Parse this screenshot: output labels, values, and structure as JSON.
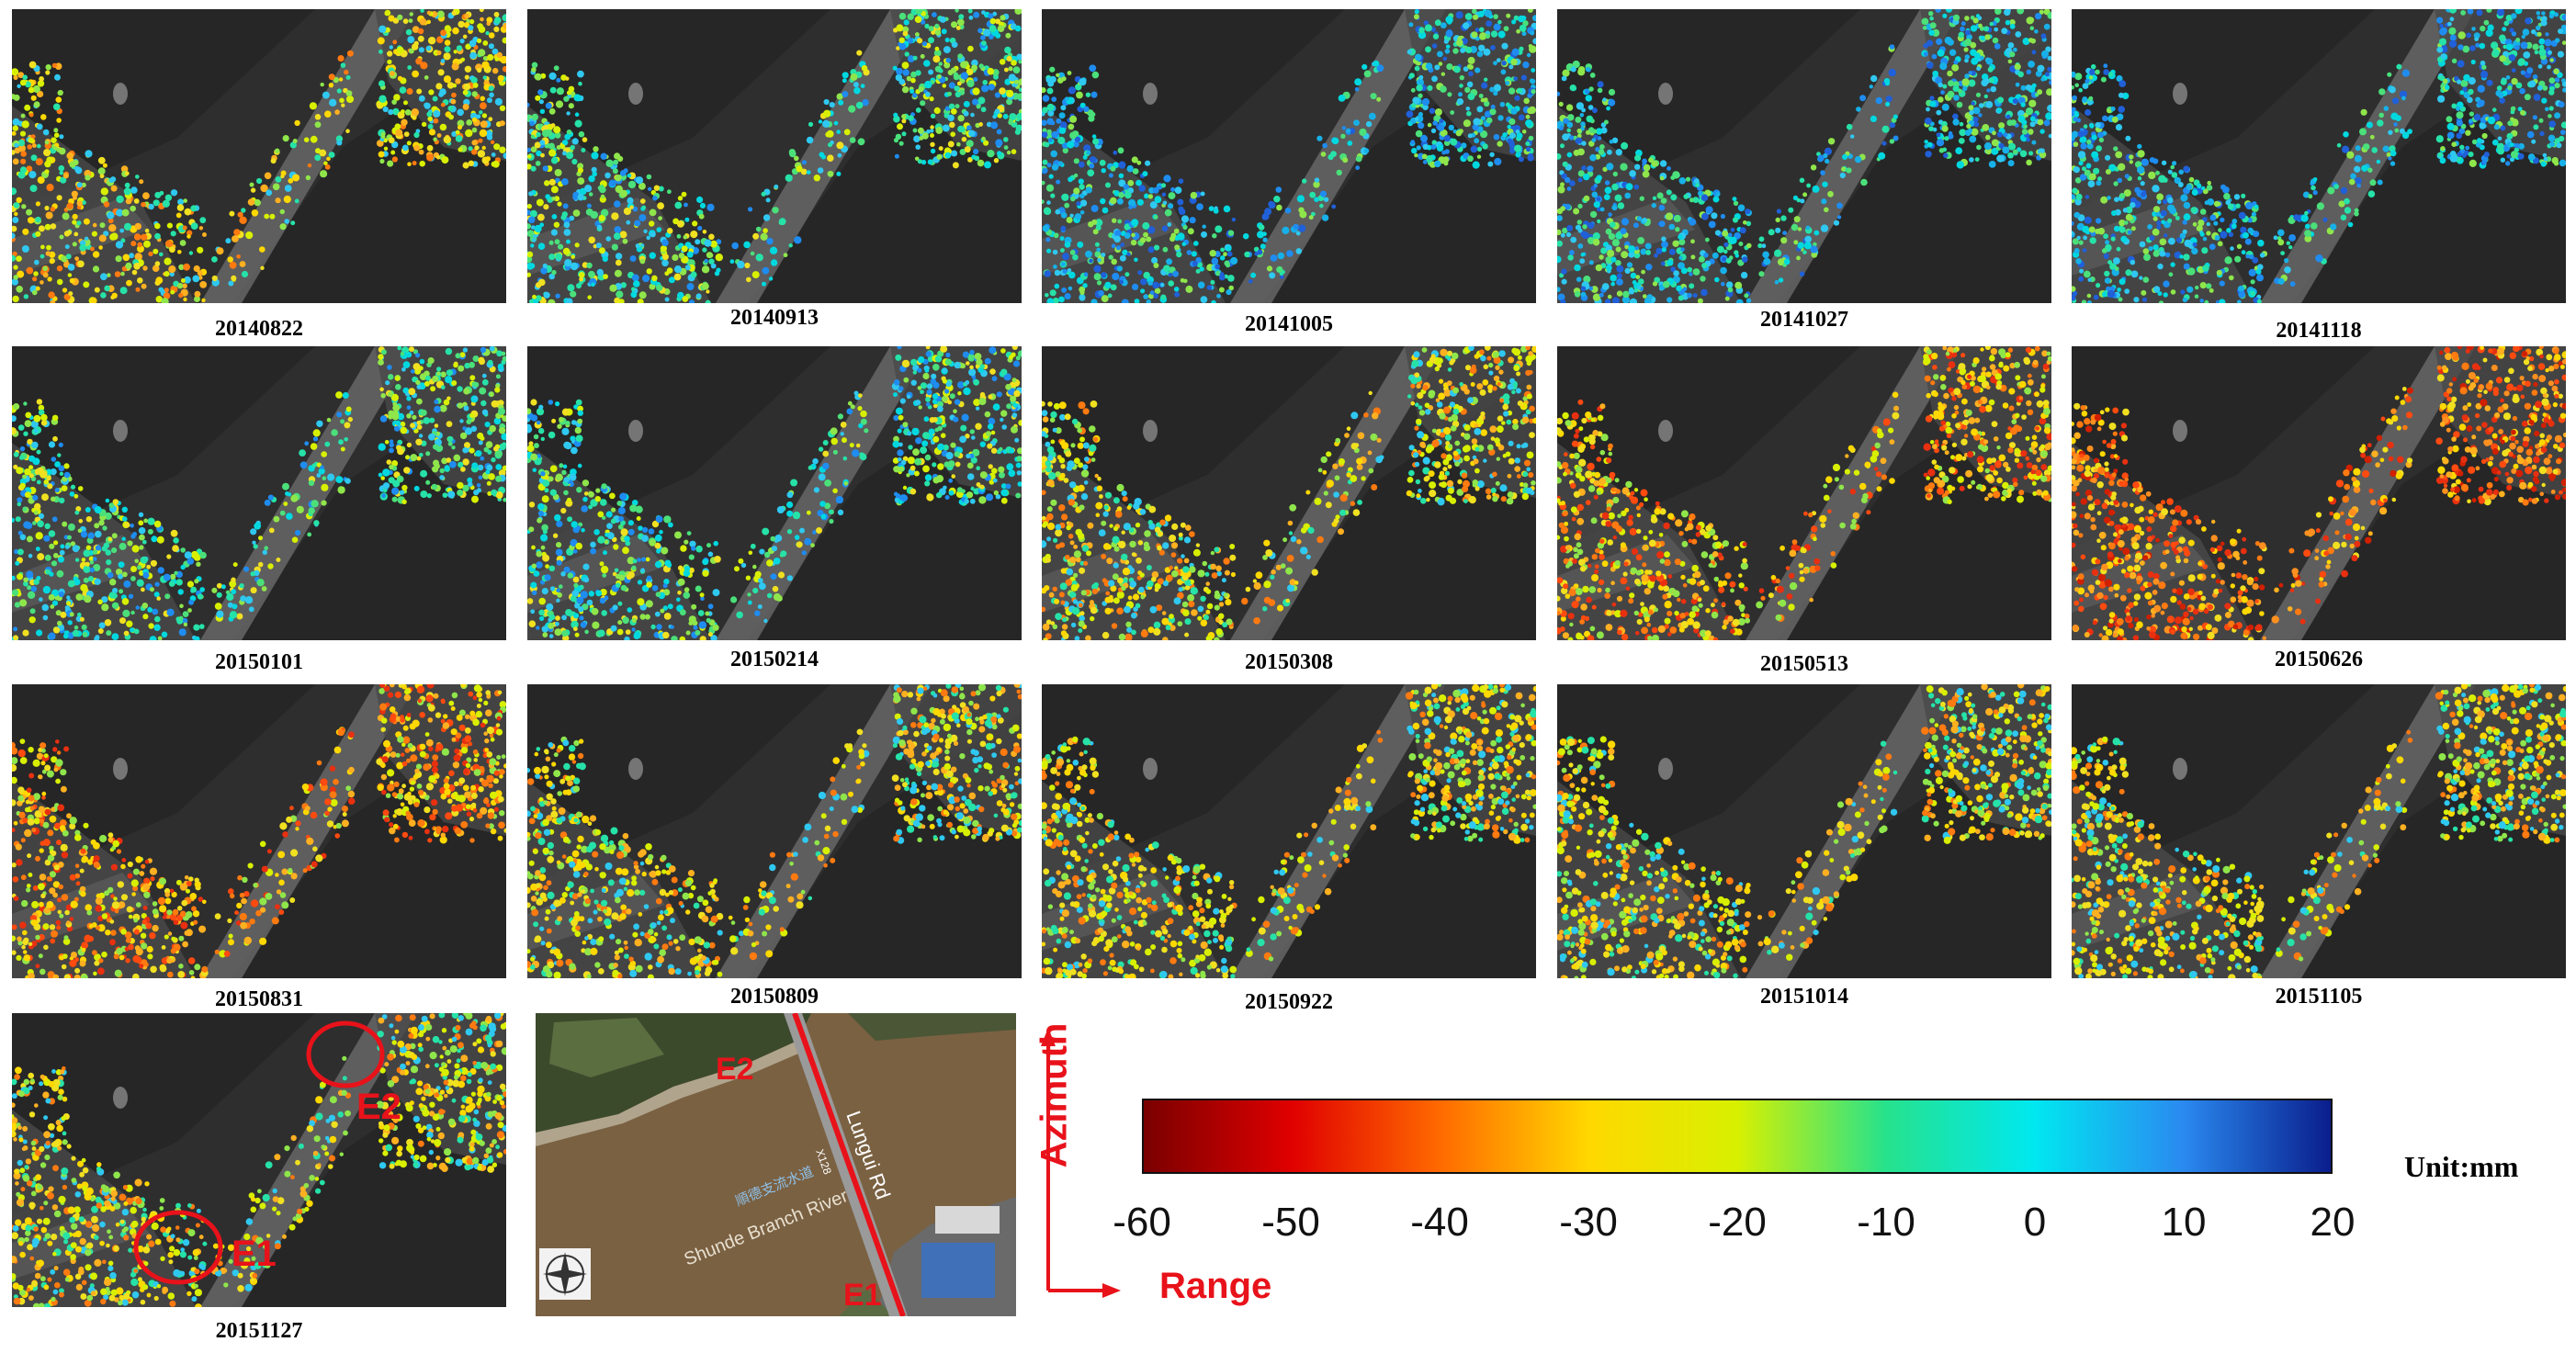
{
  "panels": [
    {
      "date": "20140822",
      "palette": "warm-mix"
    },
    {
      "date": "20140913",
      "palette": "cool-mix"
    },
    {
      "date": "20141005",
      "palette": "cool"
    },
    {
      "date": "20141027",
      "palette": "cool"
    },
    {
      "date": "20141118",
      "palette": "cool"
    },
    {
      "date": "20150101",
      "palette": "cool-mix"
    },
    {
      "date": "20150214",
      "palette": "cool-mix"
    },
    {
      "date": "20150308",
      "palette": "warm-mix"
    },
    {
      "date": "20150513",
      "palette": "warm"
    },
    {
      "date": "20150626",
      "palette": "hot"
    },
    {
      "date": "20150831",
      "palette": "warm"
    },
    {
      "date": "20150809",
      "palette": "warm-mix"
    },
    {
      "date": "20150922",
      "palette": "warm-mix"
    },
    {
      "date": "20151014",
      "palette": "warm-mix"
    },
    {
      "date": "20151105",
      "palette": "warm-mix"
    },
    {
      "date": "20151127",
      "palette": "warm-mix"
    }
  ],
  "annotations": {
    "e1": "E1",
    "e2": "E2"
  },
  "map": {
    "road_label": "Lungui Rd",
    "river_label": "Shunde Branch River",
    "chinese_label": "順德支流水道",
    "road_code": "X128",
    "e1": "E1",
    "e2": "E2",
    "compass_icon": "compass-rose-icon"
  },
  "axes": {
    "azimuth": "Azimuth",
    "range": "Range"
  },
  "colorbar": {
    "ticks": [
      "-60",
      "-50",
      "-40",
      "-30",
      "-20",
      "-10",
      "0",
      "10",
      "20"
    ],
    "unit": "Unit:mm",
    "colors": [
      "#7a0000",
      "#e00000",
      "#ff6a00",
      "#ffd800",
      "#d8f000",
      "#26e28c",
      "#00e8f0",
      "#2a8af0",
      "#0a1e8c"
    ]
  }
}
